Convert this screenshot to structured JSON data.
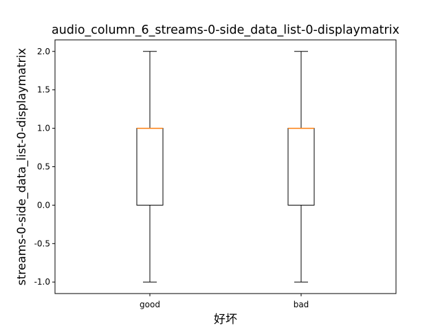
{
  "chart_data": {
    "type": "boxplot",
    "title": "audio_column_6_streams-0-side_data_list-0-displaymatrix",
    "xlabel": "好坏",
    "ylabel": "streams-0-side_data_list-0-displaymatrix",
    "categories": [
      "good",
      "bad"
    ],
    "boxes": [
      {
        "category": "good",
        "whislo": -1.0,
        "q1": 0.0,
        "med": 1.0,
        "q3": 1.0,
        "whishi": 2.0
      },
      {
        "category": "bad",
        "whislo": -1.0,
        "q1": 0.0,
        "med": 1.0,
        "q3": 1.0,
        "whishi": 2.0
      }
    ],
    "ylim": [
      -1.15,
      2.15
    ],
    "yticks": [
      -1.0,
      -0.5,
      0.0,
      0.5,
      1.0,
      1.5,
      2.0
    ],
    "ytick_labels": [
      "-1.0",
      "-0.5",
      "0.0",
      "0.5",
      "1.0",
      "1.5",
      "2.0"
    ],
    "grid": false,
    "colors": {
      "box": "#000000",
      "median": "#ff7f0e",
      "whisker": "#000000"
    }
  }
}
